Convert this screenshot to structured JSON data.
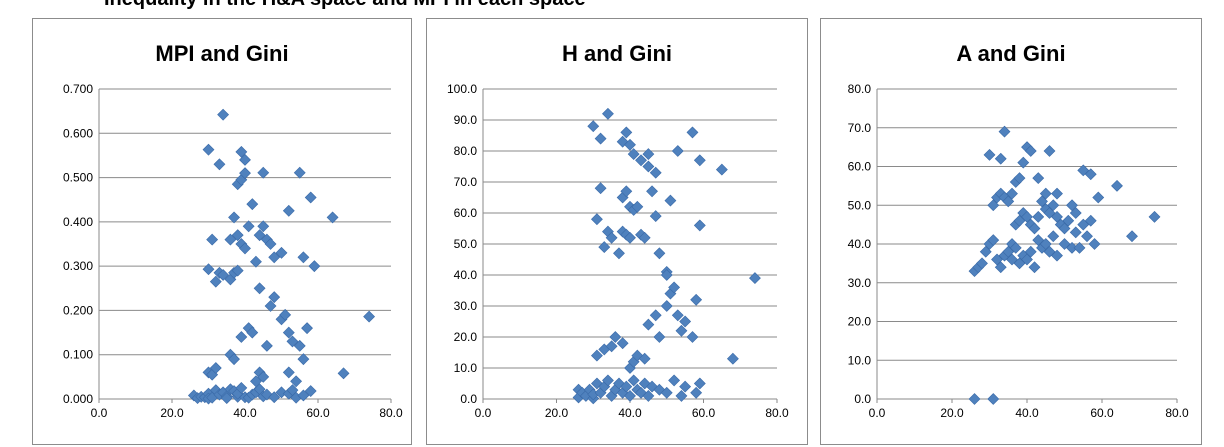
{
  "page": {
    "header_text": "Inequality in the H&A space and MPI in each space"
  },
  "chart_data": [
    {
      "type": "scatter",
      "title": "MPI and Gini",
      "xlabel": "",
      "ylabel": "",
      "xlim": [
        0,
        80
      ],
      "ylim": [
        0,
        0.7
      ],
      "xticks": [
        "0.0",
        "20.0",
        "40.0",
        "60.0",
        "80.0"
      ],
      "yticks": [
        "0.000",
        "0.100",
        "0.200",
        "0.300",
        "0.400",
        "0.500",
        "0.600",
        "0.700"
      ],
      "grid": "horizontal",
      "marker": "diamond",
      "marker_color": "#4F81BD",
      "points": [
        [
          26,
          0.008
        ],
        [
          27,
          0.002
        ],
        [
          28,
          0.005
        ],
        [
          29,
          0.004
        ],
        [
          30,
          0.012
        ],
        [
          30,
          0.001
        ],
        [
          31,
          0.003
        ],
        [
          32,
          0.02
        ],
        [
          33,
          0.01
        ],
        [
          34,
          0.015
        ],
        [
          35,
          0.006
        ],
        [
          35,
          0.002
        ],
        [
          36,
          0.022
        ],
        [
          37,
          0.018
        ],
        [
          38,
          0.005
        ],
        [
          38,
          0.012
        ],
        [
          39,
          0.025
        ],
        [
          40,
          0.004
        ],
        [
          41,
          0.003
        ],
        [
          42,
          0.01
        ],
        [
          43,
          0.015
        ],
        [
          44,
          0.022
        ],
        [
          45,
          0.006
        ],
        [
          46,
          0.01
        ],
        [
          48,
          0.004
        ],
        [
          50,
          0.015
        ],
        [
          52,
          0.012
        ],
        [
          53,
          0.02
        ],
        [
          54,
          0.003
        ],
        [
          56,
          0.008
        ],
        [
          58,
          0.018
        ],
        [
          30,
          0.06
        ],
        [
          31,
          0.055
        ],
        [
          32,
          0.07
        ],
        [
          36,
          0.1
        ],
        [
          37,
          0.09
        ],
        [
          39,
          0.14
        ],
        [
          41,
          0.16
        ],
        [
          42,
          0.15
        ],
        [
          43,
          0.04
        ],
        [
          44,
          0.06
        ],
        [
          45,
          0.05
        ],
        [
          46,
          0.12
        ],
        [
          47,
          0.21
        ],
        [
          48,
          0.23
        ],
        [
          50,
          0.18
        ],
        [
          51,
          0.19
        ],
        [
          52,
          0.15
        ],
        [
          52,
          0.06
        ],
        [
          53,
          0.13
        ],
        [
          54,
          0.04
        ],
        [
          55,
          0.12
        ],
        [
          56,
          0.09
        ],
        [
          57,
          0.16
        ],
        [
          67,
          0.058
        ],
        [
          74,
          0.186
        ],
        [
          30,
          0.293
        ],
        [
          32,
          0.265
        ],
        [
          33,
          0.285
        ],
        [
          34,
          0.28
        ],
        [
          36,
          0.27
        ],
        [
          37,
          0.285
        ],
        [
          38,
          0.29
        ],
        [
          36,
          0.36
        ],
        [
          37,
          0.41
        ],
        [
          38,
          0.37
        ],
        [
          39,
          0.35
        ],
        [
          40,
          0.34
        ],
        [
          41,
          0.39
        ],
        [
          42,
          0.44
        ],
        [
          43,
          0.31
        ],
        [
          44,
          0.25
        ],
        [
          44,
          0.37
        ],
        [
          45,
          0.39
        ],
        [
          46,
          0.36
        ],
        [
          47,
          0.35
        ],
        [
          48,
          0.32
        ],
        [
          50,
          0.33
        ],
        [
          52,
          0.425
        ],
        [
          56,
          0.32
        ],
        [
          59,
          0.3
        ],
        [
          64,
          0.41
        ],
        [
          31,
          0.36
        ],
        [
          30,
          0.563
        ],
        [
          33,
          0.53
        ],
        [
          34,
          0.642
        ],
        [
          38,
          0.485
        ],
        [
          39,
          0.495
        ],
        [
          39,
          0.558
        ],
        [
          40,
          0.54
        ],
        [
          40,
          0.51
        ],
        [
          45,
          0.511
        ],
        [
          55,
          0.511
        ],
        [
          58,
          0.455
        ]
      ]
    },
    {
      "type": "scatter",
      "title": "H and Gini",
      "xlabel": "",
      "ylabel": "",
      "xlim": [
        0,
        80
      ],
      "ylim": [
        0,
        100
      ],
      "xticks": [
        "0.0",
        "20.0",
        "40.0",
        "60.0",
        "80.0"
      ],
      "yticks": [
        "0.0",
        "10.0",
        "20.0",
        "30.0",
        "40.0",
        "50.0",
        "60.0",
        "70.0",
        "80.0",
        "90.0",
        "100.0"
      ],
      "grid": "horizontal",
      "marker": "diamond",
      "marker_color": "#4F81BD",
      "points": [
        [
          26,
          3
        ],
        [
          26,
          0.5
        ],
        [
          27,
          2
        ],
        [
          28,
          1
        ],
        [
          29,
          3
        ],
        [
          30,
          0.2
        ],
        [
          30,
          1.5
        ],
        [
          31,
          5
        ],
        [
          32,
          2
        ],
        [
          33,
          4
        ],
        [
          34,
          6
        ],
        [
          35,
          1
        ],
        [
          36,
          3
        ],
        [
          37,
          5
        ],
        [
          38,
          2
        ],
        [
          39,
          4
        ],
        [
          40,
          1
        ],
        [
          41,
          6
        ],
        [
          42,
          3
        ],
        [
          43,
          2
        ],
        [
          44,
          5
        ],
        [
          45,
          1
        ],
        [
          46,
          4
        ],
        [
          48,
          3
        ],
        [
          50,
          2
        ],
        [
          52,
          6
        ],
        [
          54,
          1
        ],
        [
          55,
          4
        ],
        [
          58,
          2
        ],
        [
          59,
          5
        ],
        [
          31,
          14
        ],
        [
          33,
          16
        ],
        [
          35,
          17
        ],
        [
          36,
          20
        ],
        [
          38,
          18
        ],
        [
          40,
          10
        ],
        [
          41,
          12
        ],
        [
          42,
          14
        ],
        [
          44,
          13
        ],
        [
          45,
          24
        ],
        [
          47,
          27
        ],
        [
          48,
          20
        ],
        [
          50,
          30
        ],
        [
          51,
          34
        ],
        [
          52,
          36
        ],
        [
          53,
          27
        ],
        [
          54,
          22
        ],
        [
          55,
          25
        ],
        [
          57,
          20
        ],
        [
          58,
          32
        ],
        [
          68,
          13
        ],
        [
          74,
          39
        ],
        [
          31,
          58
        ],
        [
          32,
          68
        ],
        [
          33,
          49
        ],
        [
          34,
          54
        ],
        [
          35,
          52
        ],
        [
          37,
          47
        ],
        [
          38,
          54
        ],
        [
          39,
          53
        ],
        [
          40,
          52
        ],
        [
          38,
          65
        ],
        [
          39,
          67
        ],
        [
          40,
          62
        ],
        [
          41,
          61
        ],
        [
          42,
          62
        ],
        [
          43,
          53
        ],
        [
          44,
          52
        ],
        [
          45,
          75
        ],
        [
          46,
          67
        ],
        [
          47,
          59
        ],
        [
          48,
          47
        ],
        [
          50,
          41
        ],
        [
          50,
          40
        ],
        [
          51,
          64
        ],
        [
          59,
          56
        ],
        [
          30,
          88
        ],
        [
          32,
          84
        ],
        [
          34,
          92
        ],
        [
          38,
          83
        ],
        [
          39,
          86
        ],
        [
          40,
          82
        ],
        [
          41,
          79
        ],
        [
          43,
          77
        ],
        [
          45,
          79
        ],
        [
          47,
          73
        ],
        [
          53,
          80
        ],
        [
          57,
          86
        ],
        [
          59,
          77
        ],
        [
          65,
          74
        ]
      ]
    },
    {
      "type": "scatter",
      "title": "A and Gini",
      "xlabel": "",
      "ylabel": "",
      "xlim": [
        0,
        80
      ],
      "ylim": [
        0,
        80
      ],
      "xticks": [
        "0.0",
        "20.0",
        "40.0",
        "60.0",
        "80.0"
      ],
      "yticks": [
        "0.0",
        "10.0",
        "20.0",
        "30.0",
        "40.0",
        "50.0",
        "60.0",
        "70.0",
        "80.0"
      ],
      "grid": "horizontal",
      "marker": "diamond",
      "marker_color": "#4F81BD",
      "points": [
        [
          26,
          0
        ],
        [
          31,
          0
        ],
        [
          26,
          33
        ],
        [
          27,
          34
        ],
        [
          28,
          35
        ],
        [
          29,
          38
        ],
        [
          30,
          40
        ],
        [
          31,
          41
        ],
        [
          32,
          36
        ],
        [
          33,
          34
        ],
        [
          34,
          37
        ],
        [
          35,
          38
        ],
        [
          36,
          40
        ],
        [
          36,
          36
        ],
        [
          37,
          39
        ],
        [
          38,
          35
        ],
        [
          39,
          37
        ],
        [
          40,
          36
        ],
        [
          41,
          38
        ],
        [
          42,
          34
        ],
        [
          43,
          41
        ],
        [
          44,
          39
        ],
        [
          45,
          40
        ],
        [
          46,
          38
        ],
        [
          47,
          42
        ],
        [
          48,
          37
        ],
        [
          50,
          40
        ],
        [
          52,
          39
        ],
        [
          53,
          43
        ],
        [
          54,
          39
        ],
        [
          56,
          42
        ],
        [
          58,
          40
        ],
        [
          68,
          42
        ],
        [
          74,
          47
        ],
        [
          31,
          50
        ],
        [
          32,
          52
        ],
        [
          33,
          53
        ],
        [
          34,
          52
        ],
        [
          35,
          51
        ],
        [
          36,
          53
        ],
        [
          37,
          45
        ],
        [
          38,
          46
        ],
        [
          39,
          48
        ],
        [
          40,
          47
        ],
        [
          41,
          45
        ],
        [
          42,
          44
        ],
        [
          43,
          47
        ],
        [
          44,
          51
        ],
        [
          45,
          49
        ],
        [
          46,
          48
        ],
        [
          47,
          50
        ],
        [
          48,
          47
        ],
        [
          49,
          45
        ],
        [
          50,
          44
        ],
        [
          51,
          46
        ],
        [
          52,
          50
        ],
        [
          53,
          48
        ],
        [
          55,
          45
        ],
        [
          57,
          46
        ],
        [
          59,
          52
        ],
        [
          64,
          55
        ],
        [
          30,
          63
        ],
        [
          33,
          62
        ],
        [
          34,
          69
        ],
        [
          37,
          56
        ],
        [
          38,
          57
        ],
        [
          39,
          61
        ],
        [
          40,
          65
        ],
        [
          41,
          64
        ],
        [
          43,
          57
        ],
        [
          45,
          53
        ],
        [
          46,
          64
        ],
        [
          48,
          53
        ],
        [
          55,
          59
        ],
        [
          57,
          58
        ]
      ]
    }
  ]
}
